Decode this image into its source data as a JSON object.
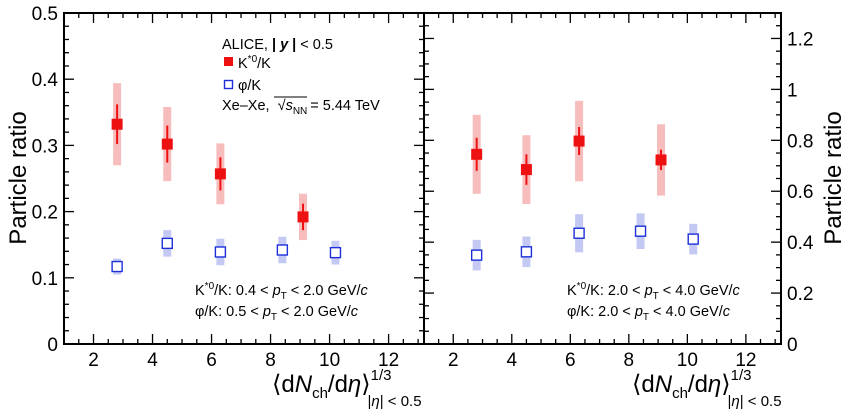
{
  "chart_data": [
    {
      "type": "scatter",
      "panel": "left",
      "xlabel": "⟨dN_ch/dη⟩^{1/3}_{|η| < 0.5}",
      "ylabel": "Particle ratio",
      "xlim": [
        1,
        13.2
      ],
      "ylim": [
        0,
        0.5
      ],
      "xticks": [
        "2",
        "4",
        "6",
        "8",
        "10",
        "12"
      ],
      "yticks": [
        "0",
        "0.1",
        "0.2",
        "0.3",
        "0.4",
        "0.5"
      ],
      "legend": {
        "header": "ALICE, |y| < 0.5",
        "system_prefix": "Xe–Xe,",
        "system_value": "= 5.44 TeV",
        "entries": [
          "K*0/K",
          "φ/K"
        ]
      },
      "annotations": [
        "K*0/K: 0.4 < pT < 2.0 GeV/c",
        "φ/K: 0.5 < pT < 2.0 GeV/c"
      ],
      "series": [
        {
          "name": "K*0/K",
          "marker": "filled-square",
          "color": "#ee1111",
          "syscolor": "#f7bcbc",
          "points": [
            {
              "x": 2.8,
              "y": 0.332,
              "stat": 0.03,
              "sys": 0.062
            },
            {
              "x": 4.5,
              "y": 0.302,
              "stat": 0.028,
              "sys": 0.056
            },
            {
              "x": 6.3,
              "y": 0.257,
              "stat": 0.025,
              "sys": 0.046
            },
            {
              "x": 9.1,
              "y": 0.192,
              "stat": 0.02,
              "sys": 0.035
            }
          ]
        },
        {
          "name": "φ/K",
          "marker": "open-square",
          "color": "#1d2fd8",
          "syscolor": "#c3c9f3",
          "points": [
            {
              "x": 2.8,
              "y": 0.117,
              "stat": 0.004,
              "sys": 0.012
            },
            {
              "x": 4.5,
              "y": 0.152,
              "stat": 0.005,
              "sys": 0.02
            },
            {
              "x": 6.3,
              "y": 0.139,
              "stat": 0.005,
              "sys": 0.02
            },
            {
              "x": 8.4,
              "y": 0.142,
              "stat": 0.005,
              "sys": 0.02
            },
            {
              "x": 10.2,
              "y": 0.138,
              "stat": 0.005,
              "sys": 0.018
            }
          ]
        }
      ]
    },
    {
      "type": "scatter",
      "panel": "right",
      "xlabel": "⟨dN_ch/dη⟩^{1/3}_{|η| < 0.5}",
      "ylabel": "Particle ratio",
      "xlim": [
        1,
        13.2
      ],
      "ylim": [
        0,
        1.3
      ],
      "xticks": [
        "2",
        "4",
        "6",
        "8",
        "10",
        "12"
      ],
      "yticks": [
        "0",
        "0.2",
        "0.4",
        "0.6",
        "0.8",
        "1",
        "1.2"
      ],
      "annotations": [
        "K*0/K: 2.0 < pT < 4.0 GeV/c",
        "φ/K: 2.0 < pT < 4.0 GeV/c"
      ],
      "series": [
        {
          "name": "K*0/K",
          "marker": "filled-square",
          "color": "#ee1111",
          "syscolor": "#f7bcbc",
          "points": [
            {
              "x": 2.8,
              "y": 0.745,
              "stat": 0.065,
              "sys": 0.155
            },
            {
              "x": 4.5,
              "y": 0.685,
              "stat": 0.06,
              "sys": 0.135
            },
            {
              "x": 6.3,
              "y": 0.797,
              "stat": 0.055,
              "sys": 0.158
            },
            {
              "x": 9.1,
              "y": 0.723,
              "stat": 0.04,
              "sys": 0.14
            }
          ]
        },
        {
          "name": "φ/K",
          "marker": "open-square",
          "color": "#1d2fd8",
          "syscolor": "#c3c9f3",
          "points": [
            {
              "x": 2.8,
              "y": 0.349,
              "stat": 0.015,
              "sys": 0.06
            },
            {
              "x": 4.5,
              "y": 0.362,
              "stat": 0.012,
              "sys": 0.06
            },
            {
              "x": 6.3,
              "y": 0.435,
              "stat": 0.012,
              "sys": 0.075
            },
            {
              "x": 8.4,
              "y": 0.443,
              "stat": 0.012,
              "sys": 0.07
            },
            {
              "x": 10.2,
              "y": 0.412,
              "stat": 0.012,
              "sys": 0.06
            }
          ]
        }
      ]
    }
  ]
}
